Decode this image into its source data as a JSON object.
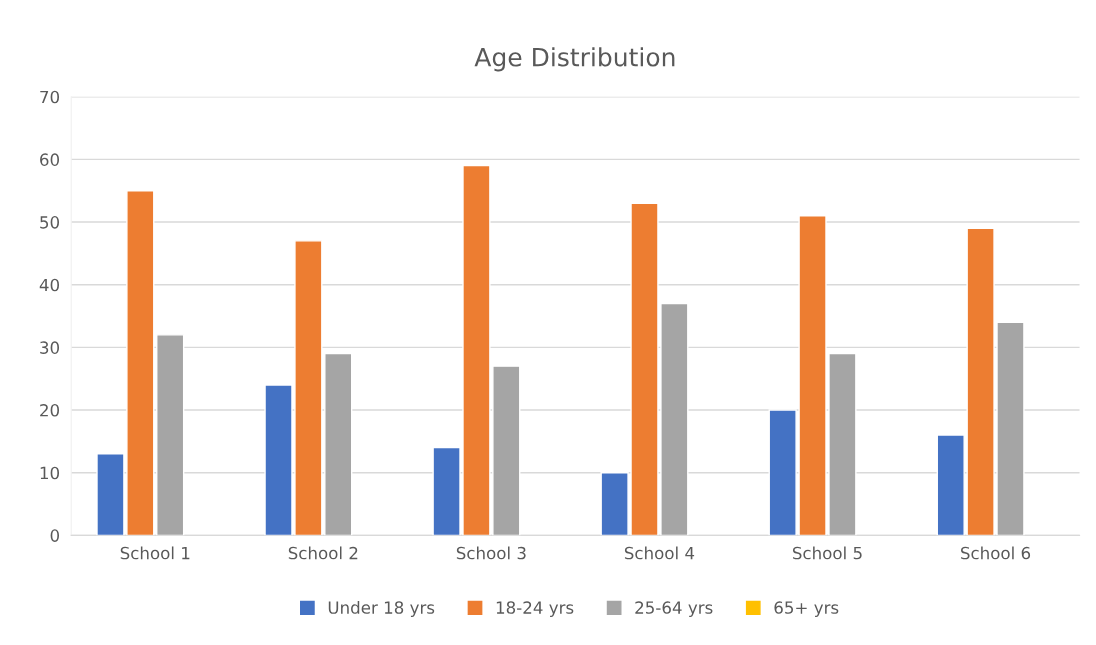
{
  "chart_data": {
    "type": "bar",
    "title": "Age Distribution",
    "categories": [
      "School 1",
      "School 2",
      "School 3",
      "School 4",
      "School 5",
      "School 6"
    ],
    "series": [
      {
        "name": "Under 18 yrs",
        "color": "#4472c4",
        "values": [
          13,
          24,
          14,
          10,
          20,
          16
        ]
      },
      {
        "name": "18-24 yrs",
        "color": "#ed7d31",
        "values": [
          55,
          47,
          59,
          53,
          51,
          49
        ]
      },
      {
        "name": "25-64 yrs",
        "color": "#a5a5a5",
        "values": [
          32,
          29,
          27,
          37,
          29,
          34
        ]
      },
      {
        "name": "65+ yrs",
        "color": "#ffc000",
        "values": [
          null,
          null,
          null,
          null,
          null,
          null
        ]
      }
    ],
    "ylim": [
      0,
      70
    ],
    "yticks": [
      0,
      10,
      20,
      30,
      40,
      50,
      60,
      70
    ],
    "grid": "y",
    "legend": "bottom"
  }
}
